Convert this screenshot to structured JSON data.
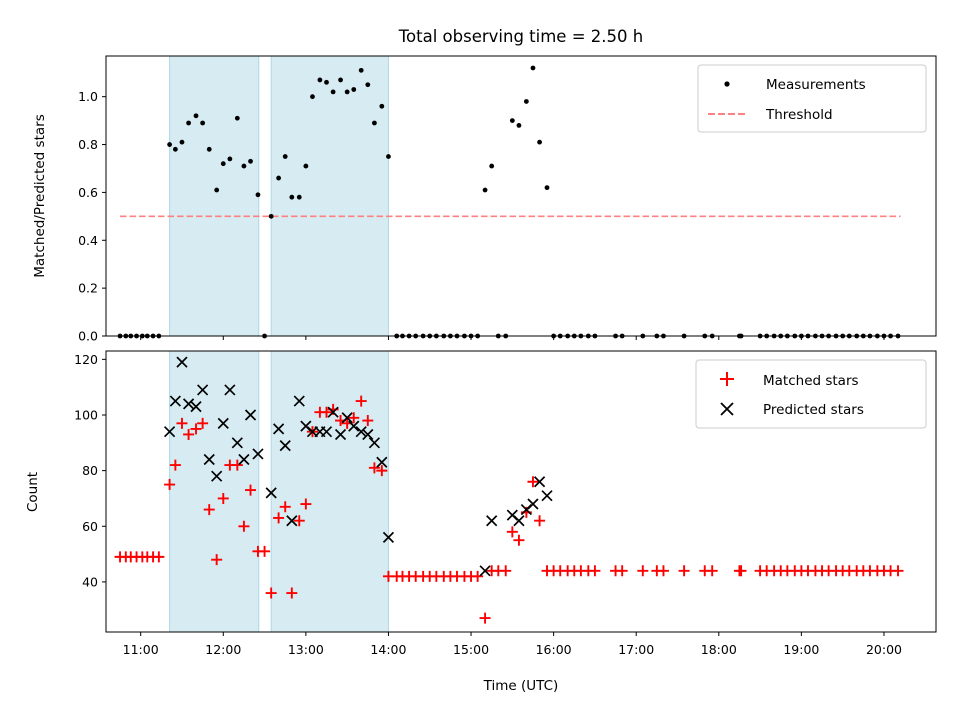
{
  "title": "Total observing time = 2.50 h",
  "colors": {
    "shade": "#add8e6",
    "measurement": "#000000",
    "threshold": "#ff8080",
    "matched": "#ff0000",
    "predicted": "#000000"
  },
  "chart_data": [
    {
      "type": "scatter",
      "ylabel": "Matched/Predicted stars",
      "xlim": [
        10.58,
        20.63
      ],
      "ylim": [
        0,
        1.17
      ],
      "yticks": [
        0.0,
        0.2,
        0.4,
        0.6,
        0.8,
        1.0
      ],
      "ytick_labels": [
        "0.0",
        "0.2",
        "0.4",
        "0.6",
        "0.8",
        "1.0"
      ],
      "xticks": [
        11,
        12,
        13,
        14,
        15,
        16,
        17,
        18,
        19,
        20
      ],
      "shaded_spans": [
        [
          11.35,
          12.43
        ],
        [
          12.58,
          14.0
        ]
      ],
      "threshold": {
        "y": 0.5,
        "x_range": [
          10.75,
          20.2
        ]
      },
      "legend": {
        "position": "upper right",
        "entries": [
          "Measurements",
          "Threshold"
        ]
      },
      "series": [
        {
          "name": "Measurements",
          "marker": "dot",
          "x": [
            10.75,
            10.82,
            10.88,
            10.95,
            11.02,
            11.08,
            11.15,
            11.22,
            11.35,
            11.42,
            11.5,
            11.58,
            11.67,
            11.75,
            11.83,
            11.92,
            12.0,
            12.08,
            12.17,
            12.25,
            12.33,
            12.42,
            12.5,
            12.58,
            12.67,
            12.75,
            12.83,
            12.92,
            13.0,
            13.08,
            13.17,
            13.25,
            13.33,
            13.42,
            13.5,
            13.58,
            13.67,
            13.75,
            13.83,
            13.92,
            14.0,
            14.1,
            14.17,
            14.25,
            14.33,
            14.42,
            14.5,
            14.58,
            14.67,
            14.75,
            14.83,
            14.92,
            15.0,
            15.08,
            15.17,
            15.25,
            15.33,
            15.42,
            15.5,
            15.58,
            15.67,
            15.75,
            15.83,
            15.92,
            16.0,
            16.08,
            16.17,
            16.25,
            16.33,
            16.42,
            16.5,
            16.75,
            16.83,
            17.08,
            17.25,
            17.33,
            17.58,
            17.83,
            17.92,
            18.25,
            18.27,
            18.5,
            18.58,
            18.67,
            18.75,
            18.83,
            18.92,
            19.0,
            19.08,
            19.17,
            19.25,
            19.33,
            19.42,
            19.5,
            19.58,
            19.67,
            19.75,
            19.83,
            19.92,
            20.0,
            20.08,
            20.17
          ],
          "y": [
            0,
            0,
            0,
            0,
            0,
            0,
            0,
            0,
            0.8,
            0.78,
            0.81,
            0.89,
            0.92,
            0.89,
            0.78,
            0.61,
            0.72,
            0.74,
            0.91,
            0.71,
            0.73,
            0.59,
            0,
            0.5,
            0.66,
            0.75,
            0.58,
            0.58,
            0.71,
            1.0,
            1.07,
            1.06,
            1.02,
            1.07,
            1.02,
            1.03,
            1.11,
            1.05,
            0.89,
            0.96,
            0.75,
            0,
            0,
            0,
            0,
            0,
            0,
            0,
            0,
            0,
            0,
            0,
            0,
            0,
            0.61,
            0.71,
            0,
            0,
            0.9,
            0.88,
            0.98,
            1.12,
            0.81,
            0.62,
            0,
            0,
            0,
            0,
            0,
            0,
            0,
            0,
            0,
            0,
            0,
            0,
            0,
            0,
            0,
            0,
            0,
            0,
            0,
            0,
            0,
            0,
            0,
            0,
            0,
            0,
            0,
            0,
            0,
            0,
            0,
            0,
            0,
            0,
            0,
            0,
            0,
            0
          ]
        }
      ]
    },
    {
      "type": "scatter",
      "ylabel": "Count",
      "xlabel": "Time (UTC)",
      "xlim": [
        10.58,
        20.63
      ],
      "ylim": [
        22,
        123
      ],
      "yticks": [
        40,
        60,
        80,
        100,
        120
      ],
      "ytick_labels": [
        "40",
        "60",
        "80",
        "100",
        "120"
      ],
      "xticks": [
        11,
        12,
        13,
        14,
        15,
        16,
        17,
        18,
        19,
        20
      ],
      "xtick_labels": [
        "11:00",
        "12:00",
        "13:00",
        "14:00",
        "15:00",
        "16:00",
        "17:00",
        "18:00",
        "19:00",
        "20:00"
      ],
      "shaded_spans": [
        [
          11.35,
          12.43
        ],
        [
          12.58,
          14.0
        ]
      ],
      "legend": {
        "position": "upper right",
        "entries": [
          "Matched stars",
          "Predicted stars"
        ]
      },
      "series": [
        {
          "name": "Matched stars",
          "marker": "plus",
          "x": [
            10.75,
            10.82,
            10.88,
            10.95,
            11.02,
            11.08,
            11.15,
            11.22,
            11.35,
            11.42,
            11.5,
            11.58,
            11.67,
            11.75,
            11.83,
            11.92,
            12.0,
            12.08,
            12.17,
            12.25,
            12.33,
            12.42,
            12.5,
            12.58,
            12.67,
            12.75,
            12.83,
            12.92,
            13.0,
            13.08,
            13.17,
            13.25,
            13.33,
            13.42,
            13.5,
            13.58,
            13.67,
            13.75,
            13.83,
            13.92,
            14.0,
            14.1,
            14.17,
            14.25,
            14.33,
            14.42,
            14.5,
            14.58,
            14.67,
            14.75,
            14.83,
            14.92,
            15.0,
            15.08,
            15.17,
            15.25,
            15.33,
            15.42,
            15.5,
            15.58,
            15.67,
            15.75,
            15.83,
            15.92,
            16.0,
            16.08,
            16.17,
            16.25,
            16.33,
            16.42,
            16.5,
            16.75,
            16.83,
            17.08,
            17.25,
            17.33,
            17.58,
            17.83,
            17.92,
            18.25,
            18.27,
            18.5,
            18.58,
            18.67,
            18.75,
            18.83,
            18.92,
            19.0,
            19.08,
            19.17,
            19.25,
            19.33,
            19.42,
            19.5,
            19.58,
            19.67,
            19.75,
            19.83,
            19.92,
            20.0,
            20.08,
            20.17
          ],
          "y": [
            49,
            49,
            49,
            49,
            49,
            49,
            49,
            49,
            75,
            82,
            97,
            93,
            95,
            97,
            66,
            48,
            70,
            82,
            82,
            60,
            73,
            51,
            51,
            36,
            63,
            67,
            36,
            62,
            68,
            94,
            101,
            101,
            102,
            98,
            97,
            99,
            105,
            98,
            81,
            80,
            42,
            42,
            42,
            42,
            42,
            42,
            42,
            42,
            42,
            42,
            42,
            42,
            42,
            42,
            27,
            44,
            44,
            44,
            58,
            55,
            65,
            76,
            62,
            44,
            44,
            44,
            44,
            44,
            44,
            44,
            44,
            44,
            44,
            44,
            44,
            44,
            44,
            44,
            44,
            44,
            44,
            44,
            44,
            44,
            44,
            44,
            44,
            44,
            44,
            44,
            44,
            44,
            44,
            44,
            44,
            44,
            44,
            44,
            44,
            44,
            44,
            44
          ]
        },
        {
          "name": "Predicted stars",
          "marker": "x",
          "x": [
            11.35,
            11.42,
            11.5,
            11.58,
            11.67,
            11.75,
            11.83,
            11.92,
            12.0,
            12.08,
            12.17,
            12.25,
            12.33,
            12.42,
            12.58,
            12.67,
            12.75,
            12.83,
            12.92,
            13.0,
            13.08,
            13.17,
            13.25,
            13.33,
            13.42,
            13.5,
            13.58,
            13.67,
            13.75,
            13.83,
            13.92,
            14.0,
            15.17,
            15.25,
            15.5,
            15.58,
            15.67,
            15.75,
            15.83,
            15.92
          ],
          "y": [
            94,
            105,
            119,
            104,
            103,
            109,
            84,
            78,
            97,
            109,
            90,
            84,
            100,
            86,
            72,
            95,
            89,
            62,
            105,
            96,
            94,
            94,
            94,
            101,
            93,
            99,
            96,
            94,
            93,
            90,
            83,
            56,
            44,
            62,
            64,
            62,
            66,
            68,
            76,
            71
          ]
        }
      ]
    }
  ]
}
